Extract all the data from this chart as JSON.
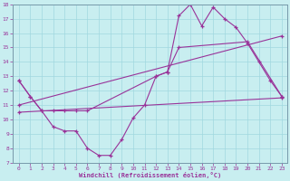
{
  "xlabel": "Windchill (Refroidissement éolien,°C)",
  "xlim": [
    -0.5,
    23.5
  ],
  "ylim": [
    7,
    18
  ],
  "yticks": [
    7,
    8,
    9,
    10,
    11,
    12,
    13,
    14,
    15,
    16,
    17,
    18
  ],
  "xticks": [
    0,
    1,
    2,
    3,
    4,
    5,
    6,
    7,
    8,
    9,
    10,
    11,
    12,
    13,
    14,
    15,
    16,
    17,
    18,
    19,
    20,
    21,
    22,
    23
  ],
  "background_color": "#c8eef0",
  "grid_color": "#a0d8df",
  "line_color": "#993399",
  "series": [
    {
      "x": [
        0,
        1,
        2,
        3,
        4,
        5,
        6,
        12,
        13,
        14,
        15,
        16,
        17,
        18,
        19,
        20,
        21,
        22,
        23
      ],
      "y": [
        12.7,
        11.6,
        10.6,
        10.6,
        10.6,
        10.6,
        10.6,
        13.0,
        13.3,
        17.2,
        18.0,
        16.5,
        17.8,
        17.0,
        16.4,
        15.3,
        14.0,
        12.7,
        11.6
      ]
    },
    {
      "x": [
        0,
        1,
        2,
        3,
        4,
        5,
        6,
        7,
        8,
        9,
        10,
        11,
        12,
        13,
        14,
        20,
        23
      ],
      "y": [
        12.7,
        11.6,
        10.6,
        9.5,
        9.2,
        9.2,
        8.0,
        7.5,
        7.5,
        8.6,
        10.1,
        11.0,
        13.0,
        13.3,
        15.0,
        15.4,
        11.6
      ]
    },
    {
      "x": [
        0,
        23
      ],
      "y": [
        11.0,
        15.8
      ]
    },
    {
      "x": [
        0,
        23
      ],
      "y": [
        10.5,
        11.5
      ]
    }
  ]
}
